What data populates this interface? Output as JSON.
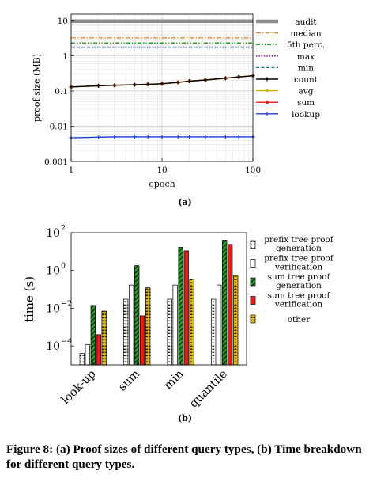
{
  "figure_caption": "Figure 8: (a) Proof sizes of different query types, (b) Time breakdown for different query types.",
  "panel_a_label": "(a)",
  "panel_b_label": "(b)",
  "chart_data": [
    {
      "type": "line",
      "panel": "(a)",
      "xlabel": "epoch",
      "ylabel": "proof size (MB)",
      "xscale": "log",
      "yscale": "log",
      "xlim": [
        1,
        100
      ],
      "ylim": [
        0.001,
        15
      ],
      "x_ticks": [
        1,
        10,
        100
      ],
      "x_tick_labels": [
        "1",
        "10",
        "100"
      ],
      "y_ticks": [
        0.001,
        0.01,
        0.1,
        1,
        10
      ],
      "y_tick_labels": [
        "0.001",
        "0.01",
        "0.1",
        "1",
        "10"
      ],
      "grid": true,
      "legend_position": "right",
      "series": [
        {
          "name": "audit",
          "color": "#8c8c8c",
          "style": "solid-thick",
          "x": [
            1,
            100
          ],
          "y": [
            9.5,
            9.5
          ]
        },
        {
          "name": "median",
          "color": "#d9822b",
          "style": "dashdot",
          "x": [
            1,
            100
          ],
          "y": [
            3.2,
            3.2
          ]
        },
        {
          "name": "5th perc.",
          "color": "#2ca02c",
          "style": "dashdotdot",
          "x": [
            1,
            100
          ],
          "y": [
            2.3,
            2.3
          ]
        },
        {
          "name": "max",
          "color": "#8b1a8b",
          "style": "dotted",
          "x": [
            1,
            100
          ],
          "y": [
            1.75,
            1.75
          ]
        },
        {
          "name": "min",
          "color": "#1a7f7f",
          "style": "dashed",
          "x": [
            1,
            100
          ],
          "y": [
            1.75,
            1.75
          ]
        },
        {
          "name": "count",
          "color": "#000000",
          "style": "solid-plus",
          "x": [
            1,
            2,
            3,
            5,
            7,
            10,
            15,
            20,
            30,
            50,
            70,
            100
          ],
          "y": [
            0.13,
            0.14,
            0.145,
            0.15,
            0.155,
            0.16,
            0.175,
            0.19,
            0.205,
            0.23,
            0.25,
            0.27
          ]
        },
        {
          "name": "avg",
          "color": "#c8b400",
          "style": "solid-dot",
          "x": [
            1,
            2,
            3,
            5,
            7,
            10,
            15,
            20,
            30,
            50,
            70,
            100
          ],
          "y": [
            0.13,
            0.14,
            0.145,
            0.15,
            0.155,
            0.16,
            0.175,
            0.19,
            0.205,
            0.23,
            0.25,
            0.27
          ]
        },
        {
          "name": "sum",
          "color": "#e41a1c",
          "style": "solid-square",
          "x": [
            1,
            2,
            3,
            5,
            7,
            10,
            15,
            20,
            30,
            50,
            70,
            100
          ],
          "y": [
            0.13,
            0.14,
            0.145,
            0.15,
            0.155,
            0.16,
            0.175,
            0.19,
            0.205,
            0.23,
            0.25,
            0.27
          ]
        },
        {
          "name": "lookup",
          "color": "#1f3fd6",
          "style": "solid-plus",
          "x": [
            1,
            2,
            3,
            5,
            7,
            10,
            15,
            20,
            30,
            50,
            70,
            100
          ],
          "y": [
            0.0047,
            0.0049,
            0.005,
            0.005,
            0.005,
            0.005,
            0.005,
            0.005,
            0.005,
            0.005,
            0.005,
            0.005
          ]
        }
      ]
    },
    {
      "type": "bar",
      "panel": "(b)",
      "ylabel": "time (s)",
      "yscale": "log",
      "ylim": [
        1e-05,
        100
      ],
      "y_ticks": [
        0.0001,
        0.01,
        1,
        100
      ],
      "y_tick_labels": [
        "10",
        "10",
        "10",
        "10"
      ],
      "y_tick_exponents": [
        "−4",
        "−2",
        "0",
        "2"
      ],
      "categories": [
        "look-up",
        "sum",
        "min",
        "quantile"
      ],
      "legend_position": "right",
      "series": [
        {
          "name": "prefix tree proof generation",
          "color": "#222222",
          "pattern": "dots",
          "values": [
            4e-05,
            0.03,
            0.03,
            0.03
          ]
        },
        {
          "name": "prefix tree proof verification",
          "color": "#ffffff",
          "pattern": "none",
          "values": [
            0.00012,
            0.17,
            0.17,
            0.17
          ]
        },
        {
          "name": "sum tree proof generation",
          "color": "#2ca02c",
          "pattern": "hatch",
          "values": [
            0.014,
            1.8,
            17,
            40
          ]
        },
        {
          "name": "sum tree proof verification",
          "color": "#e41a1c",
          "pattern": "none",
          "values": [
            0.0004,
            0.004,
            11,
            24
          ]
        },
        {
          "name": "other",
          "color": "#e6b800",
          "pattern": "dots",
          "values": [
            0.007,
            0.12,
            0.35,
            0.55
          ]
        }
      ]
    }
  ]
}
